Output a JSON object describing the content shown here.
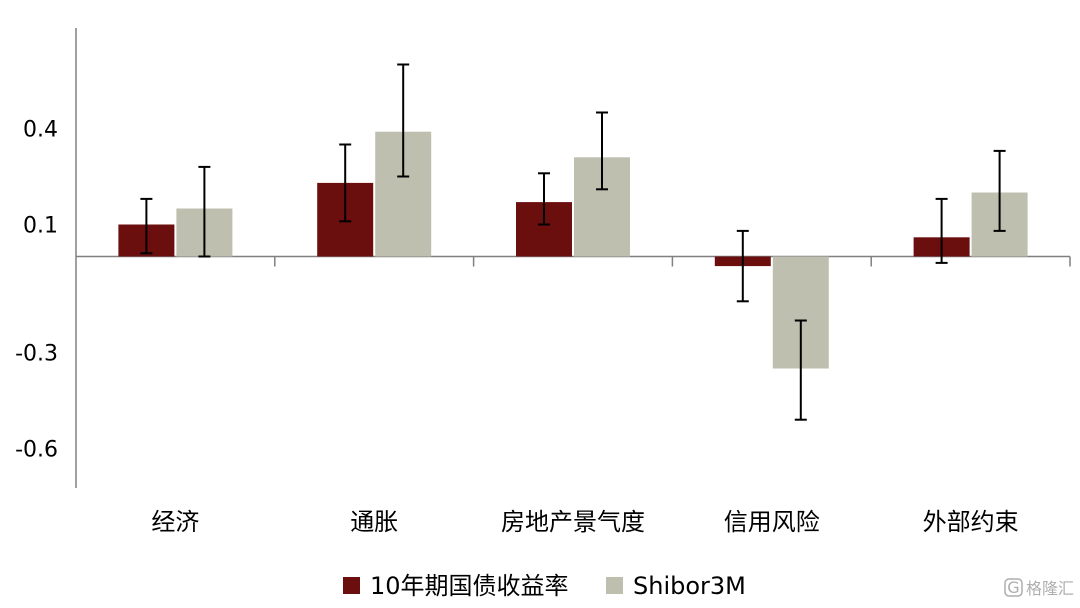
{
  "chart_data": {
    "type": "bar",
    "title": "",
    "xlabel": "",
    "ylabel": "",
    "categories": [
      "经济",
      "通胀",
      "房地产景气度",
      "信用风险",
      "外部约束"
    ],
    "yticks": [
      0.4,
      0.1,
      -0.3,
      -0.6
    ],
    "ytick_labels": [
      "0.4",
      "0.1",
      "-0.3",
      "-0.6"
    ],
    "ylim": [
      -0.67,
      0.67
    ],
    "grid": false,
    "legend_position": "bottom",
    "series": [
      {
        "name": "10年期国债收益率",
        "color": "#6B0E0E",
        "values": [
          0.1,
          0.23,
          0.17,
          -0.03,
          0.06
        ],
        "error_low": [
          0.01,
          0.11,
          0.1,
          -0.14,
          -0.02
        ],
        "error_high": [
          0.18,
          0.35,
          0.26,
          0.08,
          0.18
        ]
      },
      {
        "name": "Shibor3M",
        "color": "#BFBFB0",
        "values": [
          0.15,
          0.39,
          0.31,
          -0.35,
          0.2
        ],
        "error_low": [
          0.0,
          0.25,
          0.21,
          -0.51,
          0.08
        ],
        "error_high": [
          0.28,
          0.6,
          0.45,
          -0.2,
          0.33
        ]
      }
    ]
  },
  "watermark": {
    "logo_letter": "G",
    "text": "格隆汇"
  }
}
